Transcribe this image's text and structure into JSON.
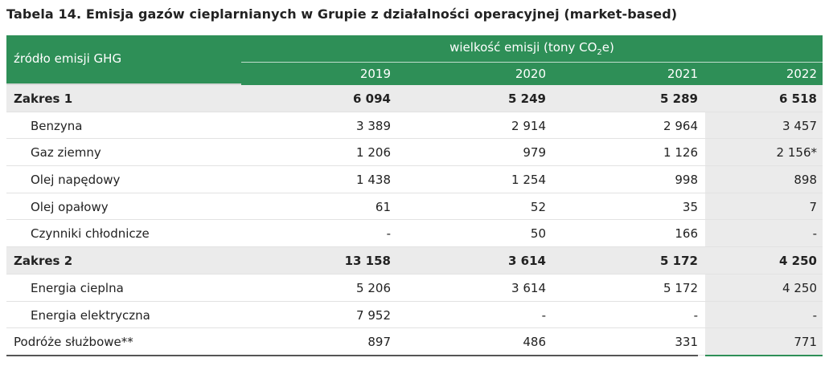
{
  "title": "Tabela 14. Emisja gazów cieplarnianych w Grupie z działalności operacyjnej (market-based)",
  "header": {
    "source_label": "źródło emisji GHG",
    "unit_prefix": "wielkość emisji (tony CO",
    "unit_sub": "2",
    "unit_suffix": "e)",
    "years": [
      "2019",
      "2020",
      "2021",
      "2022"
    ]
  },
  "colors": {
    "header_green": "#2e8f57",
    "total_gray": "#ebebeb"
  },
  "rows": [
    {
      "label": "Zakres 1",
      "type": "total",
      "values": [
        "6 094",
        "5 249",
        "5 289",
        "6 518"
      ]
    },
    {
      "label": "Benzyna",
      "type": "sub",
      "values": [
        "3 389",
        "2 914",
        "2 964",
        "3 457"
      ]
    },
    {
      "label": "Gaz ziemny",
      "type": "sub",
      "values": [
        "1 206",
        "979",
        "1 126",
        "2 156*"
      ]
    },
    {
      "label": "Olej napędowy",
      "type": "sub",
      "values": [
        "1 438",
        "1 254",
        "998",
        "898"
      ]
    },
    {
      "label": "Olej opałowy",
      "type": "sub",
      "values": [
        "61",
        "52",
        "35",
        "7"
      ]
    },
    {
      "label": "Czynniki chłodnicze",
      "type": "sub",
      "values": [
        "-",
        "50",
        "166",
        "-"
      ]
    },
    {
      "label": "Zakres 2",
      "type": "total",
      "values": [
        "13 158",
        "3 614",
        "5 172",
        "4 250"
      ]
    },
    {
      "label": "Energia cieplna",
      "type": "sub",
      "values": [
        "5 206",
        "3 614",
        "5 172",
        "4 250"
      ]
    },
    {
      "label": "Energia elektryczna",
      "type": "sub",
      "values": [
        "7 952",
        "-",
        "-",
        "-"
      ]
    },
    {
      "label": "Podróże służbowe**",
      "type": "plain",
      "values": [
        "897",
        "486",
        "331",
        "771"
      ]
    }
  ]
}
